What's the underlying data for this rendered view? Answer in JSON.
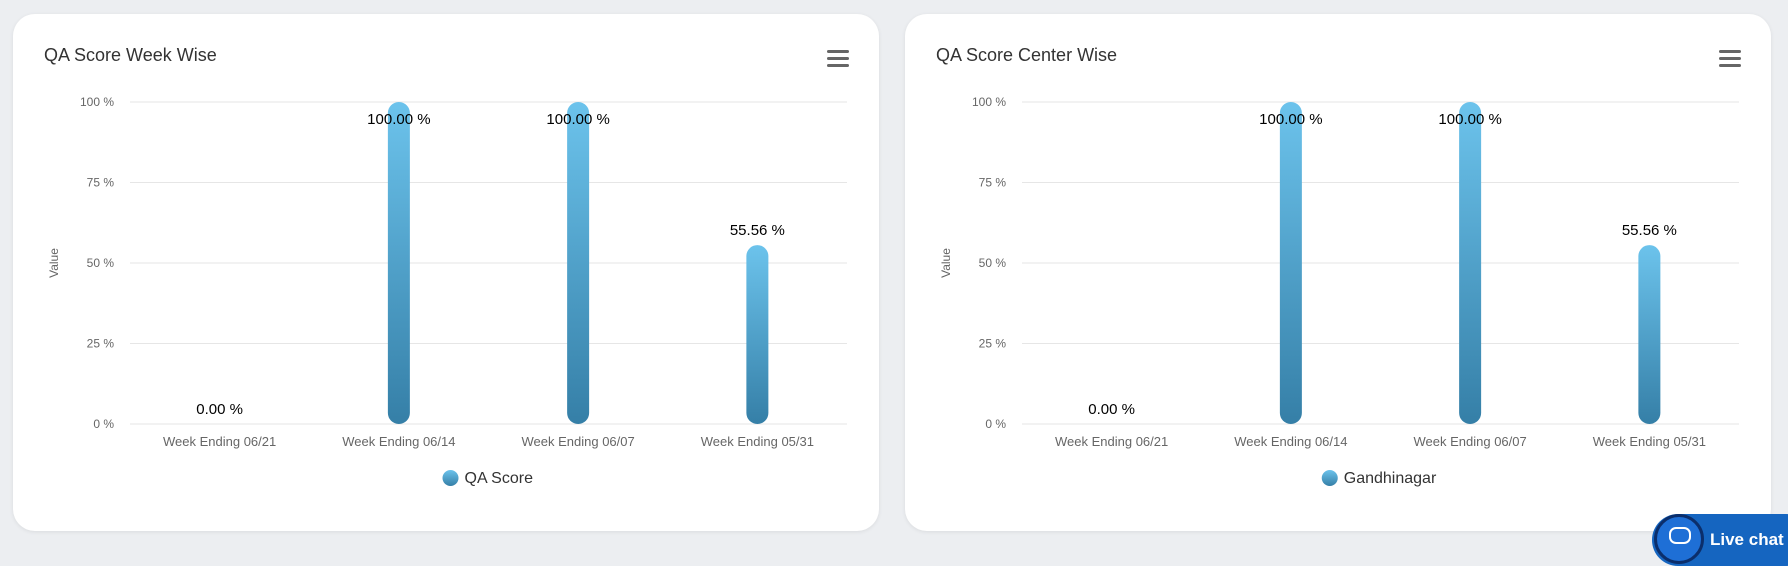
{
  "colors": {
    "bar_top": "#6cc3ec",
    "bar_bottom": "#357fa7",
    "grid": "#e6e6e6",
    "axis_text": "#666666",
    "label_text": "#000000"
  },
  "livechat": {
    "label": "Live chat",
    "icon": "chat-bubble-icon"
  },
  "chart_data": [
    {
      "type": "bar",
      "title": "QA Score Week Wise",
      "ylabel": "Value",
      "xlabel": "",
      "categories": [
        "Week Ending 06/21",
        "Week Ending 06/14",
        "Week Ending 06/07",
        "Week Ending 05/31"
      ],
      "series": [
        {
          "name": "QA Score",
          "values": [
            0.0,
            100.0,
            100.0,
            55.56
          ]
        }
      ],
      "data_labels": [
        "0.00 %",
        "100.00 %",
        "100.00 %",
        "55.56 %"
      ],
      "ylim": [
        0,
        100
      ],
      "yticks": [
        0,
        25,
        50,
        75,
        100
      ],
      "ytick_labels": [
        "0 %",
        "25 %",
        "50 %",
        "75 %",
        "100 %"
      ],
      "grid": true,
      "legend_position": "bottom-center"
    },
    {
      "type": "bar",
      "title": "QA Score Center Wise",
      "ylabel": "Value",
      "xlabel": "",
      "categories": [
        "Week Ending 06/21",
        "Week Ending 06/14",
        "Week Ending 06/07",
        "Week Ending 05/31"
      ],
      "series": [
        {
          "name": "Gandhinagar",
          "values": [
            0.0,
            100.0,
            100.0,
            55.56
          ]
        }
      ],
      "data_labels": [
        "0.00 %",
        "100.00 %",
        "100.00 %",
        "55.56 %"
      ],
      "ylim": [
        0,
        100
      ],
      "yticks": [
        0,
        25,
        50,
        75,
        100
      ],
      "ytick_labels": [
        "0 %",
        "25 %",
        "50 %",
        "75 %",
        "100 %"
      ],
      "grid": true,
      "legend_position": "bottom-center"
    }
  ]
}
